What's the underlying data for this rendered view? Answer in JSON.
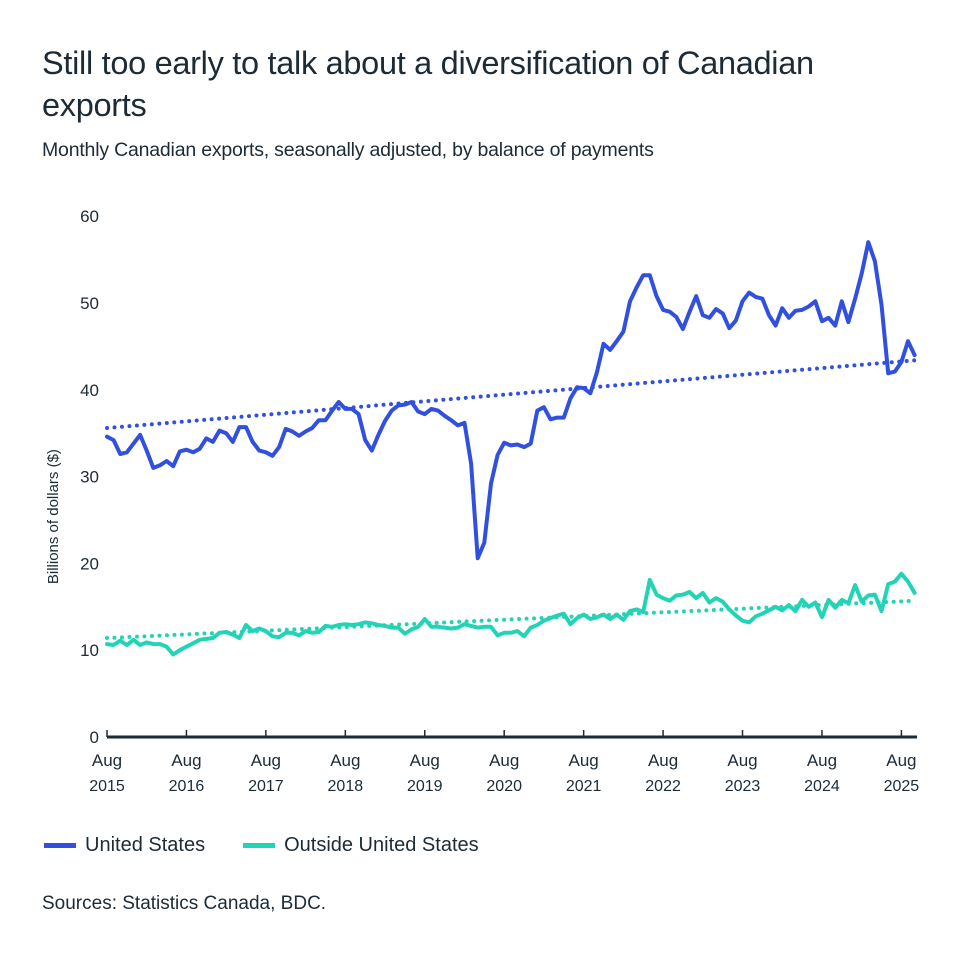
{
  "header": {
    "title": "Still too early to talk about a diversification of Canadian exports",
    "subtitle": "Monthly Canadian exports, seasonally adjusted, by balance of payments"
  },
  "footer": {
    "source": "Sources: Statistics Canada, BDC."
  },
  "colors": {
    "us": "#3150e0",
    "outside_us": "#22d3b6",
    "axis": "#1c2b36",
    "text": "#1c2b36"
  },
  "chart_data": {
    "type": "line",
    "title": "Still too early to talk about a diversification of Canadian exports",
    "subtitle": "Monthly Canadian exports, seasonally adjusted, by balance of payments",
    "xlabel": "",
    "ylabel": "Billions of dollars ($)",
    "ylim": [
      0,
      60
    ],
    "yticks": [
      0,
      10,
      20,
      30,
      40,
      50,
      60
    ],
    "x_start": "Aug 2015",
    "x_frequency": "monthly",
    "x_ticks": [
      {
        "month_index": 0,
        "line1": "Aug",
        "line2": "2015"
      },
      {
        "month_index": 12,
        "line1": "Aug",
        "line2": "2016"
      },
      {
        "month_index": 24,
        "line1": "Aug",
        "line2": "2017"
      },
      {
        "month_index": 36,
        "line1": "Aug",
        "line2": "2018"
      },
      {
        "month_index": 48,
        "line1": "Aug",
        "line2": "2019"
      },
      {
        "month_index": 60,
        "line1": "Aug",
        "line2": "2020"
      },
      {
        "month_index": 72,
        "line1": "Aug",
        "line2": "2021"
      },
      {
        "month_index": 84,
        "line1": "Aug",
        "line2": "2022"
      },
      {
        "month_index": 96,
        "line1": "Aug",
        "line2": "2023"
      },
      {
        "month_index": 108,
        "line1": "Aug",
        "line2": "2024"
      },
      {
        "month_index": 120,
        "line1": "Aug",
        "line2": "2025"
      }
    ],
    "grid": false,
    "legend_position": "bottom-left",
    "series": [
      {
        "name": "United States",
        "color": "#3150e0",
        "style": "solid",
        "values": [
          34.6,
          34.2,
          32.6,
          32.8,
          33.8,
          34.8,
          33.0,
          31.0,
          31.3,
          31.8,
          31.2,
          32.9,
          33.1,
          32.8,
          33.2,
          34.4,
          34.0,
          35.3,
          35.0,
          34.0,
          35.7,
          35.7,
          34.0,
          33.0,
          32.8,
          32.4,
          33.4,
          35.5,
          35.2,
          34.7,
          35.2,
          35.6,
          36.5,
          36.5,
          37.6,
          38.6,
          37.8,
          37.8,
          37.2,
          34.2,
          33.0,
          34.8,
          36.4,
          37.6,
          38.2,
          38.3,
          38.6,
          37.5,
          37.2,
          37.8,
          37.6,
          37.0,
          36.5,
          35.9,
          36.2,
          31.5,
          20.6,
          22.4,
          29.2,
          32.5,
          33.9,
          33.6,
          33.7,
          33.4,
          33.8,
          37.6,
          38.0,
          36.6,
          36.8,
          36.8,
          39.0,
          40.3,
          40.2,
          39.6,
          42.0,
          45.3,
          44.6,
          45.6,
          46.7,
          50.2,
          51.8,
          53.2,
          53.2,
          50.8,
          49.2,
          49.0,
          48.4,
          47.0,
          49.0,
          50.8,
          48.6,
          48.3,
          49.3,
          48.8,
          47.1,
          48.0,
          50.2,
          51.2,
          50.7,
          50.5,
          48.6,
          47.4,
          49.4,
          48.3,
          49.1,
          49.2,
          49.6,
          50.2,
          47.9,
          48.3,
          47.4,
          50.2,
          47.8,
          50.5,
          53.4,
          57.0,
          54.8,
          49.8,
          41.9,
          42.1,
          43.2,
          45.6,
          44.0
        ]
      },
      {
        "name": "United States trend",
        "color": "#3150e0",
        "style": "dotted",
        "values_endpoints": [
          35.6,
          43.4
        ]
      },
      {
        "name": "Outside United States",
        "color": "#22d3b6",
        "style": "solid",
        "values": [
          10.7,
          10.6,
          11.1,
          10.6,
          11.2,
          10.6,
          10.9,
          10.7,
          10.7,
          10.4,
          9.5,
          10.0,
          10.4,
          10.8,
          11.2,
          11.3,
          11.4,
          12.0,
          12.1,
          11.8,
          11.4,
          12.9,
          12.2,
          12.5,
          12.2,
          11.6,
          11.5,
          12.0,
          12.0,
          11.7,
          12.2,
          12.0,
          12.1,
          12.8,
          12.7,
          12.9,
          13.0,
          12.9,
          13.0,
          13.2,
          13.1,
          12.9,
          12.8,
          12.6,
          12.6,
          11.9,
          12.4,
          12.7,
          13.6,
          12.7,
          12.7,
          12.6,
          12.5,
          12.6,
          13.0,
          12.8,
          12.6,
          12.7,
          12.7,
          11.7,
          12.0,
          12.0,
          12.2,
          11.6,
          12.6,
          12.9,
          13.4,
          13.7,
          14.0,
          14.2,
          13.0,
          13.7,
          14.1,
          13.6,
          13.8,
          14.1,
          13.6,
          14.1,
          13.5,
          14.5,
          14.7,
          14.4,
          18.1,
          16.4,
          16.0,
          15.7,
          16.3,
          16.4,
          16.7,
          16.0,
          16.6,
          15.5,
          16.0,
          15.6,
          14.7,
          14.0,
          13.4,
          13.2,
          13.9,
          14.2,
          14.6,
          15.0,
          14.6,
          15.2,
          14.5,
          15.8,
          15.0,
          15.5,
          13.8,
          15.8,
          14.9,
          15.8,
          15.4,
          17.5,
          15.6,
          16.3,
          16.4,
          14.5,
          17.6,
          17.9,
          18.8,
          17.9,
          16.6
        ]
      },
      {
        "name": "Outside United States trend",
        "color": "#22d3b6",
        "style": "dotted",
        "values_endpoints": [
          11.4,
          15.7
        ]
      }
    ]
  },
  "legend": [
    {
      "label": "United States",
      "color": "#3150e0"
    },
    {
      "label": "Outside United States",
      "color": "#22d3b6"
    }
  ]
}
